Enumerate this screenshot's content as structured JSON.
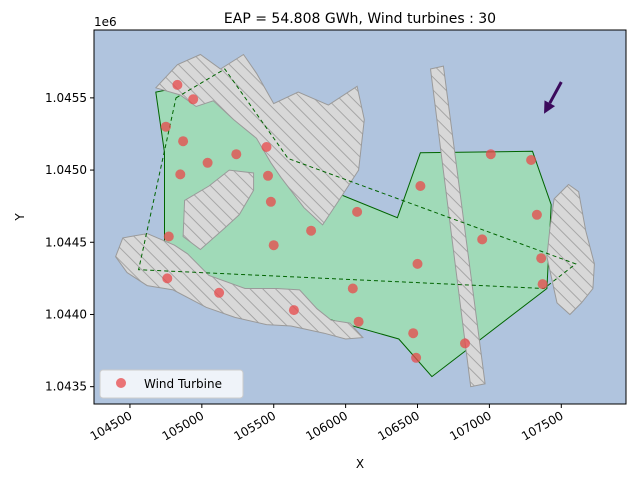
{
  "chart_data": {
    "type": "scatter",
    "title": "EAP = 54.808 GWh, Wind turbines : 30",
    "xlabel": "X",
    "ylabel": "Y",
    "y_offset_label": "1e6",
    "xlim": [
      104250,
      107950
    ],
    "ylim": [
      1043380,
      1045970
    ],
    "x_ticks": [
      104500,
      105000,
      105500,
      106000,
      106500,
      107000,
      107500
    ],
    "x_tick_labels": [
      "104500",
      "105000",
      "105500",
      "106000",
      "106500",
      "107000",
      "107500"
    ],
    "y_ticks": [
      1043500,
      1044000,
      1044500,
      1045000,
      1045500
    ],
    "y_tick_labels": [
      "1.0435",
      "1.0440",
      "1.0445",
      "1.0450",
      "1.0455"
    ],
    "legend": {
      "label": "Wind Turbine",
      "position": "lower-left"
    },
    "colors": {
      "background": "#b0c4de",
      "site_fill": "#a0dab8",
      "site_stroke": "#006400",
      "obstacle_fill": "#d8d8d8",
      "obstacle_stroke": "#9a9a9a",
      "turbine": "#e8484a",
      "wind_arrow": "#3b0a5c"
    },
    "site_boundary": [
      [
        104680,
        1045540
      ],
      [
        104930,
        1045590
      ],
      [
        105370,
        1045520
      ],
      [
        105520,
        1045010
      ],
      [
        106360,
        1044670
      ],
      [
        106520,
        1045120
      ],
      [
        107300,
        1045130
      ],
      [
        107430,
        1044760
      ],
      [
        107400,
        1044180
      ],
      [
        106600,
        1043570
      ],
      [
        106370,
        1043830
      ],
      [
        104740,
        1044290
      ],
      [
        104740,
        1045120
      ]
    ],
    "buildable_boundary": [
      [
        104820,
        1045500
      ],
      [
        105160,
        1045700
      ],
      [
        105600,
        1045080
      ],
      [
        107600,
        1044350
      ],
      [
        107380,
        1044180
      ],
      [
        104560,
        1044310
      ]
    ],
    "obstacles": [
      [
        [
          104680,
          1045570
        ],
        [
          104830,
          1045730
        ],
        [
          104990,
          1045800
        ],
        [
          105130,
          1045700
        ],
        [
          105290,
          1045800
        ],
        [
          105380,
          1045670
        ],
        [
          105500,
          1045460
        ],
        [
          105670,
          1045540
        ],
        [
          105880,
          1045450
        ],
        [
          106080,
          1045580
        ],
        [
          106130,
          1045350
        ],
        [
          106090,
          1045000
        ],
        [
          105960,
          1044800
        ],
        [
          105840,
          1044620
        ],
        [
          105710,
          1044740
        ],
        [
          105550,
          1044950
        ],
        [
          105480,
          1045050
        ],
        [
          105380,
          1045220
        ],
        [
          105220,
          1045350
        ],
        [
          105080,
          1045480
        ],
        [
          104960,
          1045440
        ],
        [
          104850,
          1045520
        ]
      ],
      [
        [
          104880,
          1044790
        ],
        [
          105050,
          1044890
        ],
        [
          105190,
          1045000
        ],
        [
          105360,
          1044980
        ],
        [
          105360,
          1044860
        ],
        [
          105260,
          1044690
        ],
        [
          105150,
          1044590
        ],
        [
          104990,
          1044450
        ],
        [
          104870,
          1044540
        ]
      ],
      [
        [
          104620,
          1044560
        ],
        [
          104810,
          1044480
        ],
        [
          104900,
          1044420
        ],
        [
          105050,
          1044270
        ],
        [
          105300,
          1044180
        ],
        [
          105520,
          1044180
        ],
        [
          105680,
          1044170
        ],
        [
          105800,
          1044040
        ],
        [
          105900,
          1043960
        ],
        [
          106030,
          1043940
        ],
        [
          106120,
          1043840
        ],
        [
          106000,
          1043830
        ],
        [
          105850,
          1043870
        ],
        [
          105620,
          1043920
        ],
        [
          105450,
          1043930
        ],
        [
          105230,
          1043980
        ],
        [
          105030,
          1044050
        ],
        [
          104800,
          1044170
        ],
        [
          104620,
          1044200
        ],
        [
          104480,
          1044290
        ],
        [
          104400,
          1044400
        ],
        [
          104450,
          1044530
        ]
      ],
      [
        [
          106590,
          1045700
        ],
        [
          106680,
          1045720
        ],
        [
          106970,
          1043520
        ],
        [
          106870,
          1043500
        ]
      ],
      [
        [
          107420,
          1044590
        ],
        [
          107450,
          1044800
        ],
        [
          107550,
          1044900
        ],
        [
          107620,
          1044850
        ],
        [
          107670,
          1044580
        ],
        [
          107730,
          1044350
        ],
        [
          107720,
          1044180
        ],
        [
          107640,
          1044080
        ],
        [
          107560,
          1044000
        ],
        [
          107470,
          1044080
        ],
        [
          107400,
          1044400
        ]
      ]
    ],
    "wind_direction": {
      "from": [
        107500,
        1045610
      ],
      "to": [
        107380,
        1045390
      ]
    },
    "turbines": {
      "x": [
        104830,
        104940,
        104750,
        104870,
        104850,
        105040,
        105240,
        105450,
        105460,
        105480,
        105500,
        104770,
        104760,
        105120,
        105640,
        105760,
        106050,
        106080,
        106090,
        106470,
        106490,
        106500,
        106520,
        106830,
        106950,
        107010,
        107290,
        107330,
        107360,
        107370
      ],
      "y": [
        1045590,
        1045490,
        1045300,
        1045200,
        1044970,
        1045050,
        1045110,
        1045160,
        1044960,
        1044780,
        1044480,
        1044540,
        1044250,
        1044150,
        1044030,
        1044580,
        1044180,
        1044710,
        1043950,
        1043870,
        1043700,
        1044350,
        1044890,
        1043800,
        1044520,
        1045110,
        1045070,
        1044690,
        1044390,
        1044210
      ]
    }
  }
}
